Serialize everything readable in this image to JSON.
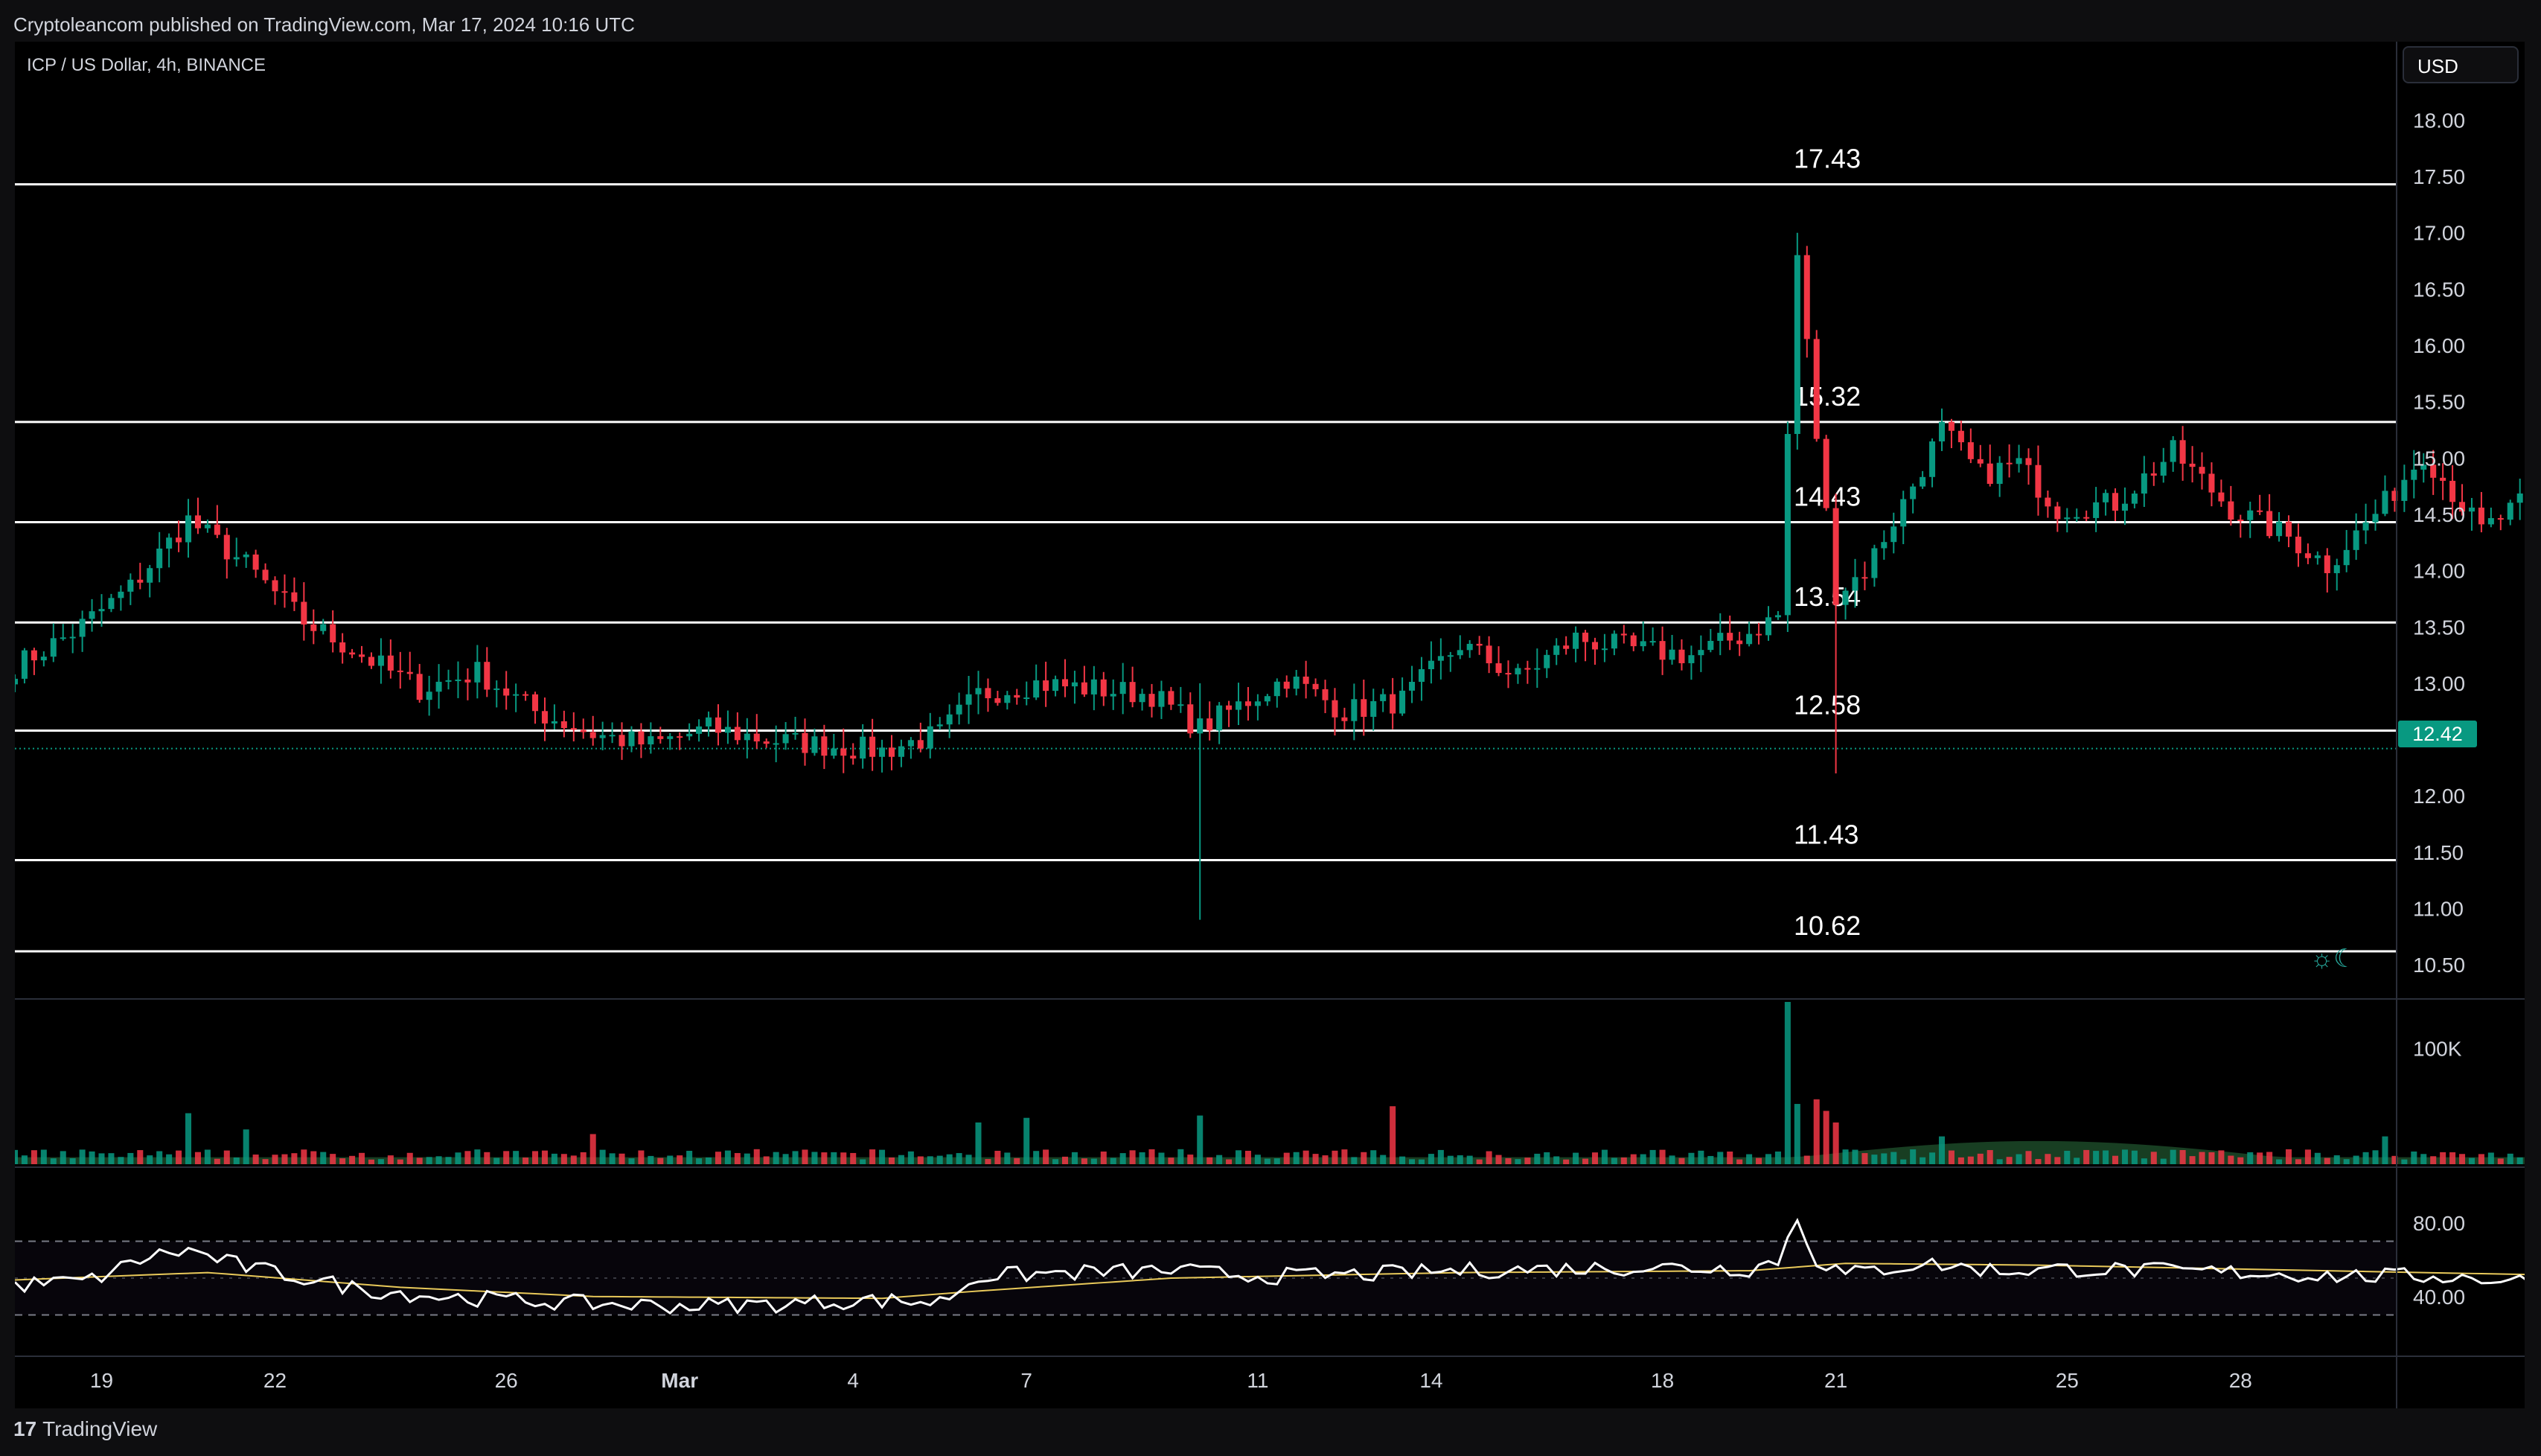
{
  "header": {
    "publisher_text": "Cryptoleancom published on TradingView.com, Mar 17, 2024 10:16 UTC"
  },
  "legend": {
    "symbol_text": "ICP / US Dollar, 4h, BINANCE"
  },
  "currency_button": {
    "label": "USD"
  },
  "footer": {
    "brand": "TradingView"
  },
  "theme_toggle": {
    "icon": "sun-moon-icon",
    "glyph": "☼☾"
  },
  "colors": {
    "up": "#089981",
    "down": "#f23645",
    "level": "#ffffff",
    "rsi": "#ffffff",
    "rsi_ma": "#e8c95a",
    "grid_dash": "#787b86"
  },
  "chart_data": [
    {
      "type": "candlestick",
      "title": "ICP / US Dollar, 4h, BINANCE",
      "ylim": [
        10.25,
        18.3
      ],
      "y_ticks": [
        "18.00",
        "17.50",
        "17.00",
        "16.50",
        "16.00",
        "15.50",
        "15.00",
        "14.50",
        "14.00",
        "13.50",
        "13.00",
        "12.50",
        "12.00",
        "11.50",
        "11.00",
        "10.50"
      ],
      "x_ticks": [
        {
          "label": "19",
          "day": 19
        },
        {
          "label": "22",
          "day": 22
        },
        {
          "label": "26",
          "day": 26
        },
        {
          "label": "Mar",
          "day": 29
        },
        {
          "label": "4",
          "day": 32
        },
        {
          "label": "7",
          "day": 35
        },
        {
          "label": "11",
          "day": 39
        },
        {
          "label": "14",
          "day": 42
        },
        {
          "label": "18",
          "day": 46
        },
        {
          "label": "21",
          "day": 49
        },
        {
          "label": "25",
          "day": 53
        },
        {
          "label": "28",
          "day": 56
        }
      ],
      "x_range_days": [
        17.5,
        58.7
      ],
      "first_candle_day": 17.5,
      "candle_hours": 4,
      "last_price": "12.42",
      "horizontal_levels": [
        {
          "value": 17.43,
          "label": "17.43"
        },
        {
          "value": 15.32,
          "label": "15.32"
        },
        {
          "value": 14.43,
          "label": "14.43"
        },
        {
          "value": 13.54,
          "label": "13.54"
        },
        {
          "value": 12.58,
          "label": "12.58"
        },
        {
          "value": 11.43,
          "label": "11.43"
        },
        {
          "value": 10.62,
          "label": "10.62"
        }
      ],
      "close_anchors": [
        [
          0,
          13.15
        ],
        [
          6,
          13.45
        ],
        [
          12,
          13.85
        ],
        [
          18,
          14.45
        ],
        [
          24,
          14.05
        ],
        [
          30,
          13.55
        ],
        [
          36,
          13.25
        ],
        [
          42,
          12.95
        ],
        [
          48,
          13.1
        ],
        [
          54,
          12.75
        ],
        [
          60,
          12.55
        ],
        [
          66,
          12.45
        ],
        [
          72,
          12.6
        ],
        [
          78,
          12.5
        ],
        [
          84,
          12.45
        ],
        [
          90,
          12.4
        ],
        [
          96,
          12.55
        ],
        [
          100,
          12.9
        ],
        [
          106,
          13.0
        ],
        [
          112,
          12.95
        ],
        [
          118,
          12.9
        ],
        [
          123,
          12.6
        ],
        [
          126,
          12.75
        ],
        [
          132,
          13.05
        ],
        [
          138,
          12.75
        ],
        [
          144,
          12.85
        ],
        [
          150,
          13.35
        ],
        [
          156,
          13.05
        ],
        [
          162,
          13.4
        ],
        [
          168,
          13.3
        ],
        [
          174,
          13.25
        ],
        [
          180,
          13.45
        ],
        [
          183,
          13.6
        ],
        [
          185,
          16.8
        ],
        [
          187,
          15.2
        ],
        [
          189,
          13.8
        ],
        [
          192,
          14.0
        ],
        [
          196,
          14.6
        ],
        [
          200,
          15.25
        ],
        [
          204,
          14.85
        ],
        [
          208,
          14.95
        ],
        [
          212,
          14.55
        ],
        [
          218,
          14.6
        ],
        [
          224,
          15.05
        ],
        [
          230,
          14.55
        ],
        [
          236,
          14.3
        ],
        [
          240,
          14.05
        ],
        [
          246,
          14.6
        ],
        [
          250,
          15.05
        ],
        [
          256,
          14.35
        ],
        [
          262,
          14.7
        ],
        [
          268,
          14.4
        ],
        [
          274,
          14.45
        ],
        [
          280,
          14.1
        ],
        [
          286,
          13.5
        ],
        [
          290,
          12.85
        ],
        [
          294,
          12.8
        ],
        [
          300,
          12.95
        ],
        [
          303,
          12.7
        ],
        [
          306,
          12.2
        ],
        [
          309,
          12.3
        ],
        [
          312,
          12.42
        ]
      ],
      "big_moves": [
        {
          "i": 123,
          "low": 10.9,
          "high": 13.0
        },
        {
          "i": 185,
          "high": 17.0
        },
        {
          "i": 189,
          "low": 12.2
        },
        {
          "i": 298,
          "high": 13.25
        },
        {
          "i": 306,
          "low": 11.6
        }
      ]
    },
    {
      "type": "bar",
      "title": "Volume",
      "y_tick": "100K",
      "ylim": [
        0,
        140000
      ],
      "spikes": [
        {
          "i": 18,
          "v": 44000
        },
        {
          "i": 24,
          "v": 30000
        },
        {
          "i": 60,
          "v": 26000
        },
        {
          "i": 100,
          "v": 36000
        },
        {
          "i": 105,
          "v": 40000
        },
        {
          "i": 123,
          "v": 42000
        },
        {
          "i": 143,
          "v": 50000
        },
        {
          "i": 184,
          "v": 140000
        },
        {
          "i": 185,
          "v": 52000
        },
        {
          "i": 187,
          "v": 56000
        },
        {
          "i": 188,
          "v": 46000
        },
        {
          "i": 189,
          "v": 36000
        },
        {
          "i": 200,
          "v": 24000
        },
        {
          "i": 246,
          "v": 24000
        },
        {
          "i": 300,
          "v": 22000
        },
        {
          "i": 309,
          "v": 54000
        }
      ]
    },
    {
      "type": "line",
      "title": "RSI",
      "y_ticks": [
        "80.00",
        "40.00"
      ],
      "ylim": [
        10,
        90
      ],
      "band": [
        30,
        70
      ],
      "mid": 50,
      "series": [
        {
          "name": "RSI",
          "anchors": [
            [
              0,
              46
            ],
            [
              8,
              49
            ],
            [
              14,
              62
            ],
            [
              18,
              65
            ],
            [
              24,
              56
            ],
            [
              30,
              50
            ],
            [
              36,
              44
            ],
            [
              44,
              40
            ],
            [
              52,
              38
            ],
            [
              60,
              36
            ],
            [
              70,
              35
            ],
            [
              80,
              36
            ],
            [
              88,
              38
            ],
            [
              96,
              37
            ],
            [
              100,
              51
            ],
            [
              110,
              53
            ],
            [
              120,
              54
            ],
            [
              130,
              51
            ],
            [
              140,
              52
            ],
            [
              150,
              54
            ],
            [
              160,
              55
            ],
            [
              170,
              56
            ],
            [
              180,
              55
            ],
            [
              183,
              60
            ],
            [
              185,
              82
            ],
            [
              187,
              60
            ],
            [
              190,
              52
            ],
            [
              198,
              58
            ],
            [
              206,
              54
            ],
            [
              214,
              55
            ],
            [
              222,
              54
            ],
            [
              232,
              53
            ],
            [
              242,
              51
            ],
            [
              252,
              51
            ],
            [
              262,
              48
            ],
            [
              272,
              47
            ],
            [
              280,
              44
            ],
            [
              288,
              36
            ],
            [
              296,
              34
            ],
            [
              302,
              35
            ],
            [
              306,
              27
            ],
            [
              309,
              30
            ],
            [
              312,
              38
            ]
          ]
        },
        {
          "name": "RSI-based MA",
          "anchors": [
            [
              0,
              49
            ],
            [
              20,
              53
            ],
            [
              40,
              45
            ],
            [
              60,
              40
            ],
            [
              90,
              39
            ],
            [
              100,
              43
            ],
            [
              120,
              50
            ],
            [
              150,
              53
            ],
            [
              180,
              54
            ],
            [
              190,
              58
            ],
            [
              210,
              57
            ],
            [
              240,
              54
            ],
            [
              270,
              51
            ],
            [
              290,
              46
            ],
            [
              300,
              40
            ],
            [
              308,
              33
            ],
            [
              312,
              33
            ]
          ]
        }
      ]
    }
  ]
}
